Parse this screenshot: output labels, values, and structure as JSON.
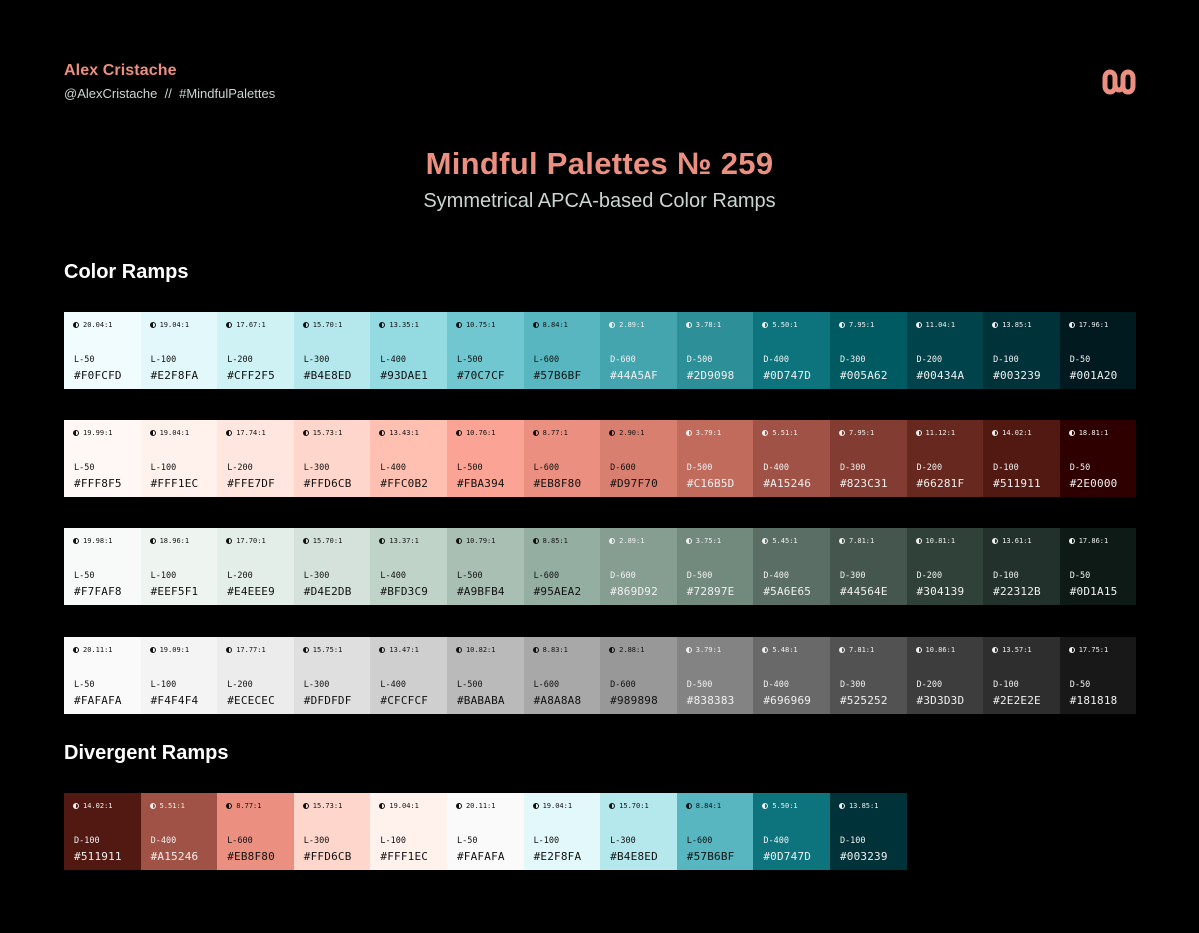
{
  "author": {
    "name": "Alex Cristache",
    "handle": "@AlexCristache",
    "separator": "//",
    "hashtag": "#MindfulPalettes"
  },
  "title": "Mindful Palettes № 259",
  "subtitle": "Symmetrical APCA-based Color Ramps",
  "sections": {
    "color_ramps": "Color Ramps",
    "divergent_ramps": "Divergent Ramps"
  },
  "ramps": [
    {
      "swatches": [
        {
          "contrast": "20.04:1",
          "step": "L-50",
          "hex": "#F0FCFD"
        },
        {
          "contrast": "19.04:1",
          "step": "L-100",
          "hex": "#E2F8FA"
        },
        {
          "contrast": "17.67:1",
          "step": "L-200",
          "hex": "#CFF2F5"
        },
        {
          "contrast": "15.70:1",
          "step": "L-300",
          "hex": "#B4E8ED"
        },
        {
          "contrast": "13.35:1",
          "step": "L-400",
          "hex": "#93DAE1"
        },
        {
          "contrast": "10.75:1",
          "step": "L-500",
          "hex": "#70C7CF"
        },
        {
          "contrast": "8.84:1",
          "step": "L-600",
          "hex": "#57B6BF"
        },
        {
          "contrast": "2.89:1",
          "step": "D-600",
          "hex": "#44A5AF"
        },
        {
          "contrast": "3.78:1",
          "step": "D-500",
          "hex": "#2D9098"
        },
        {
          "contrast": "5.50:1",
          "step": "D-400",
          "hex": "#0D747D"
        },
        {
          "contrast": "7.95:1",
          "step": "D-300",
          "hex": "#005A62"
        },
        {
          "contrast": "11.04:1",
          "step": "D-200",
          "hex": "#00434A"
        },
        {
          "contrast": "13.85:1",
          "step": "D-100",
          "hex": "#003239"
        },
        {
          "contrast": "17.96:1",
          "step": "D-50",
          "hex": "#001A20"
        }
      ]
    },
    {
      "swatches": [
        {
          "contrast": "19.99:1",
          "step": "L-50",
          "hex": "#FFF8F5"
        },
        {
          "contrast": "19.04:1",
          "step": "L-100",
          "hex": "#FFF1EC"
        },
        {
          "contrast": "17.74:1",
          "step": "L-200",
          "hex": "#FFE7DF"
        },
        {
          "contrast": "15.73:1",
          "step": "L-300",
          "hex": "#FFD6CB"
        },
        {
          "contrast": "13.43:1",
          "step": "L-400",
          "hex": "#FFC0B2"
        },
        {
          "contrast": "10.76:1",
          "step": "L-500",
          "hex": "#FBA394"
        },
        {
          "contrast": "8.77:1",
          "step": "L-600",
          "hex": "#EB8F80"
        },
        {
          "contrast": "2.90:1",
          "step": "D-600",
          "hex": "#D97F70"
        },
        {
          "contrast": "3.79:1",
          "step": "D-500",
          "hex": "#C16B5D"
        },
        {
          "contrast": "5.51:1",
          "step": "D-400",
          "hex": "#A15246"
        },
        {
          "contrast": "7.95:1",
          "step": "D-300",
          "hex": "#823C31"
        },
        {
          "contrast": "11.12:1",
          "step": "D-200",
          "hex": "#66281F"
        },
        {
          "contrast": "14.02:1",
          "step": "D-100",
          "hex": "#511911"
        },
        {
          "contrast": "18.81:1",
          "step": "D-50",
          "hex": "#2E0000"
        }
      ]
    },
    {
      "swatches": [
        {
          "contrast": "19.98:1",
          "step": "L-50",
          "hex": "#F7FAF8"
        },
        {
          "contrast": "18.96:1",
          "step": "L-100",
          "hex": "#EEF5F1"
        },
        {
          "contrast": "17.70:1",
          "step": "L-200",
          "hex": "#E4EEE9"
        },
        {
          "contrast": "15.70:1",
          "step": "L-300",
          "hex": "#D4E2DB"
        },
        {
          "contrast": "13.37:1",
          "step": "L-400",
          "hex": "#BFD3C9"
        },
        {
          "contrast": "10.79:1",
          "step": "L-500",
          "hex": "#A9BFB4"
        },
        {
          "contrast": "8.85:1",
          "step": "L-600",
          "hex": "#95AEA2"
        },
        {
          "contrast": "2.89:1",
          "step": "D-600",
          "hex": "#869D92"
        },
        {
          "contrast": "3.75:1",
          "step": "D-500",
          "hex": "#72897E"
        },
        {
          "contrast": "5.45:1",
          "step": "D-400",
          "hex": "#5A6E65"
        },
        {
          "contrast": "7.81:1",
          "step": "D-300",
          "hex": "#44564E"
        },
        {
          "contrast": "10.81:1",
          "step": "D-200",
          "hex": "#304139"
        },
        {
          "contrast": "13.61:1",
          "step": "D-100",
          "hex": "#22312B"
        },
        {
          "contrast": "17.86:1",
          "step": "D-50",
          "hex": "#0D1A15"
        }
      ]
    },
    {
      "swatches": [
        {
          "contrast": "20.11:1",
          "step": "L-50",
          "hex": "#FAFAFA"
        },
        {
          "contrast": "19.09:1",
          "step": "L-100",
          "hex": "#F4F4F4"
        },
        {
          "contrast": "17.77:1",
          "step": "L-200",
          "hex": "#ECECEC"
        },
        {
          "contrast": "15.75:1",
          "step": "L-300",
          "hex": "#DFDFDF"
        },
        {
          "contrast": "13.47:1",
          "step": "L-400",
          "hex": "#CFCFCF"
        },
        {
          "contrast": "10.82:1",
          "step": "L-500",
          "hex": "#BABABA"
        },
        {
          "contrast": "8.83:1",
          "step": "L-600",
          "hex": "#A8A8A8"
        },
        {
          "contrast": "2.88:1",
          "step": "D-600",
          "hex": "#989898"
        },
        {
          "contrast": "3.79:1",
          "step": "D-500",
          "hex": "#838383"
        },
        {
          "contrast": "5.48:1",
          "step": "D-400",
          "hex": "#696969"
        },
        {
          "contrast": "7.81:1",
          "step": "D-300",
          "hex": "#525252"
        },
        {
          "contrast": "10.86:1",
          "step": "D-200",
          "hex": "#3D3D3D"
        },
        {
          "contrast": "13.57:1",
          "step": "D-100",
          "hex": "#2E2E2E"
        },
        {
          "contrast": "17.75:1",
          "step": "D-50",
          "hex": "#181818"
        }
      ]
    }
  ],
  "divergent": {
    "swatches": [
      {
        "contrast": "14.02:1",
        "step": "D-100",
        "hex": "#511911"
      },
      {
        "contrast": "5.51:1",
        "step": "D-400",
        "hex": "#A15246"
      },
      {
        "contrast": "8.77:1",
        "step": "L-600",
        "hex": "#EB8F80"
      },
      {
        "contrast": "15.73:1",
        "step": "L-300",
        "hex": "#FFD6CB"
      },
      {
        "contrast": "19.04:1",
        "step": "L-100",
        "hex": "#FFF1EC"
      },
      {
        "contrast": "20.11:1",
        "step": "L-50",
        "hex": "#FAFAFA"
      },
      {
        "contrast": "19.04:1",
        "step": "L-100",
        "hex": "#E2F8FA"
      },
      {
        "contrast": "15.70:1",
        "step": "L-300",
        "hex": "#B4E8ED"
      },
      {
        "contrast": "8.84:1",
        "step": "L-600",
        "hex": "#57B6BF"
      },
      {
        "contrast": "5.50:1",
        "step": "D-400",
        "hex": "#0D747D"
      },
      {
        "contrast": "13.85:1",
        "step": "D-100",
        "hex": "#003239"
      }
    ]
  },
  "colors": {
    "accent": "#EB8F80",
    "muted_text": "#C9D6CF",
    "background": "#000000"
  }
}
